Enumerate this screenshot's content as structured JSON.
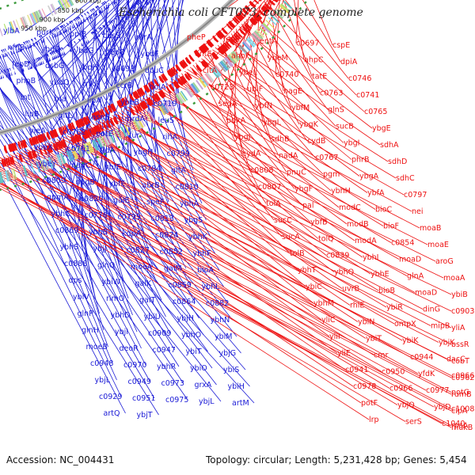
{
  "title": "Escherichia coli CFT073, complete genome",
  "footer": {
    "accession": "Accession: NC_004431",
    "topology": "Topology: circular; Length: 5,231,428 bp; Genes: 5,454"
  },
  "colors": {
    "forward_genes": "#ee1111",
    "reverse_genes": "#1a1ad6",
    "backbone": "#888888",
    "dashed_ring": "#3a9a3a"
  },
  "ticks": [
    "600 kbp",
    "650 kbp",
    "700 kbp",
    "750 kbp",
    "800 kbp",
    "850 kbp",
    "900 kbp",
    "950 kbp"
  ],
  "labels_reverse": [
    "ylbA",
    "purK",
    "ppiB",
    "cusS",
    "nfrA",
    "nfnB",
    "ybdO",
    "ybdG",
    "fepC",
    "ybdF",
    "fepD",
    "dsbG",
    "ybdH",
    "c0693",
    "dcuC",
    "phpB",
    "ybdQ",
    "rnk",
    "ccrB",
    "holA",
    "lnt",
    "rna",
    "lipA",
    "ybeB",
    "c0719",
    "lipB",
    "gltL",
    "asnB",
    "mrdA",
    "leuS",
    "yleA",
    "c0762",
    "potE",
    "fur",
    "rihA",
    "ybeX",
    "c0761",
    "fldA",
    "ybgH",
    "c0799",
    "ybeY",
    "nagC",
    "ybfE",
    "c0784",
    "gltA",
    "c0809",
    "nagB",
    "ybfF",
    "abrB",
    "c0810",
    "gpmA",
    "c0820",
    "galE",
    "speF",
    "ybhA",
    "ybhC",
    "c0778",
    "c0795",
    "c0813",
    "ybgS",
    "c0869",
    "ybhB",
    "kdpA",
    "c0824",
    "ybhK",
    "ybhS",
    "ybjJ",
    "c0827",
    "c0852",
    "ybhF",
    "c0888",
    "glnQ",
    "moeA",
    "galM",
    "bioA",
    "dps",
    "ybiW",
    "galK",
    "c0859",
    "ybhL",
    "ybiV",
    "rimO",
    "galT",
    "c0864",
    "c0882",
    "glnP",
    "ybhD",
    "ybiU",
    "ybjH",
    "ybhN",
    "glnH",
    "ybjI",
    "c0909",
    "ybhO",
    "ybiM",
    "moeB",
    "deoR",
    "c0947",
    "ybiT",
    "ybjG",
    "c0948",
    "c0970",
    "ybhR",
    "ybiO",
    "ybiS",
    "ybjL",
    "c0949",
    "c0973",
    "grxA",
    "ybiH",
    "c0929",
    "c0951",
    "c0975",
    "ybjL",
    "artM",
    "artQ",
    "ybjT"
  ],
  "labels_forward": [
    "pheP",
    "fepE",
    "entA",
    "c0697",
    "cspE",
    "entE",
    "ahpF",
    "ybeM",
    "ahpC",
    "dpiA",
    "citA",
    "ybeL",
    "c0740",
    "tatE",
    "c0746",
    "c0723",
    "ubiF",
    "nagE",
    "c0763",
    "c0741",
    "seqA",
    "ybfN",
    "ybfM",
    "glnS",
    "c0765",
    "pdxA",
    "ybgL",
    "ybgK",
    "sucB",
    "ybgE",
    "ybgJ",
    "sdhB",
    "cydB",
    "ybgI",
    "sdhA",
    "cydA",
    "nadA",
    "c0767",
    "phrB",
    "sdhD",
    "c0808",
    "pnuC",
    "pgm",
    "ybgA",
    "sdhC",
    "c0807",
    "ybgF",
    "ybhH",
    "ybfA",
    "c0797",
    "tolA",
    "pal",
    "modC",
    "bioC",
    "nei",
    "sucC",
    "ybfB",
    "modB",
    "bioF",
    "moaB",
    "sucA",
    "tolQ",
    "modA",
    "c0854",
    "moaE",
    "tolB",
    "c0839",
    "ybhI",
    "moaD",
    "aroG",
    "ybhT",
    "ybhQ",
    "ybhE",
    "glnA",
    "moaA",
    "ybiC",
    "uvrB",
    "bioB",
    "moaD",
    "ybiB",
    "ybhM",
    "rhlE",
    "ybiR",
    "dinG",
    "c0903",
    "yliC",
    "ybiN",
    "ompX",
    "mipB",
    "yliA",
    "yliI",
    "ybiT",
    "ybiK",
    "ybjK",
    "bssR",
    "yliE",
    "cmr",
    "c0944",
    "dacC",
    "cobT",
    "c0941",
    "c0950",
    "yfdK",
    "c0966",
    "c0962",
    "c0978",
    "c0966",
    "c0977",
    "potG",
    "rumB",
    "potF",
    "ybjQ",
    "ybjD",
    "c1008",
    "clpA",
    "lrp",
    "serS",
    "c1040",
    "rpsA",
    "mukB"
  ]
}
